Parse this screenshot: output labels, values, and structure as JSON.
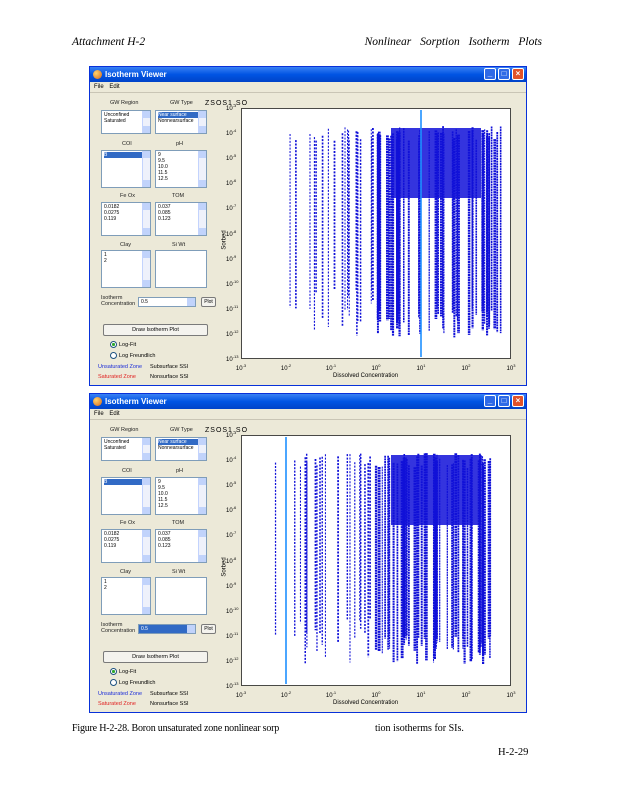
{
  "header": {
    "left": "Attachment    H-2",
    "right": "Nonlinear   Sorption   Isotherm   Plots"
  },
  "windows": [
    {
      "title": "Isotherm Viewer",
      "menu": [
        "File",
        "Edit"
      ],
      "gw_region_label": "GW Region",
      "gw_region_options": [
        "Unconfined",
        "Saturated"
      ],
      "gw_type_label": "GW Type",
      "gw_type_options": [
        "Near surface",
        "Nonnearsurface"
      ],
      "gw_type_selected": 0,
      "col_label": "COI",
      "col_options": [
        "B"
      ],
      "col_selected": 0,
      "ph_label": "pH",
      "ph_options": [
        "9",
        "9.5",
        "10.0",
        "11.5",
        "12.5"
      ],
      "fe_label": "Fe Ox",
      "fe_options": [
        "0.0182",
        "0.0275",
        "0.119"
      ],
      "com_label": "TOM",
      "com_options": [
        "0.037",
        "0.085",
        "0.123"
      ],
      "clay_label": "Clay",
      "clay_options": [
        "1",
        "2"
      ],
      "si_label": "Si Wt",
      "select_label": "Isotherm Concentration",
      "select_value": "0.5",
      "select_active": false,
      "small_button": "Plot",
      "plot_button": "Draw Isotherm Plot",
      "radio_1": "Log-Fit",
      "radio_2": "Log Freundlich",
      "legend": {
        "unsat": "Unsaturated Zone",
        "sat": "Saturated Zone",
        "a": "Subsurface SSI",
        "b": "Nonsurface SSI"
      },
      "plot_title": "ZSOS1.SO",
      "x_label": "Dissolved Concentration",
      "y_label": "Sorbed",
      "vline_x_exp": 1.0
    },
    {
      "title": "Isotherm Viewer",
      "menu": [
        "File",
        "Edit"
      ],
      "gw_region_label": "GW Region",
      "gw_region_options": [
        "Unconfined",
        "Saturated"
      ],
      "gw_type_label": "GW Type",
      "gw_type_options": [
        "Near surface",
        "Nonnearsurface"
      ],
      "gw_type_selected": 0,
      "col_label": "COI",
      "col_options": [
        "B"
      ],
      "col_selected": 0,
      "ph_label": "pH",
      "ph_options": [
        "9",
        "9.5",
        "10.0",
        "11.5",
        "12.5"
      ],
      "fe_label": "Fe Ox",
      "fe_options": [
        "0.0182",
        "0.0275",
        "0.119"
      ],
      "com_label": "TOM",
      "com_options": [
        "0.037",
        "0.085",
        "0.123"
      ],
      "clay_label": "Clay",
      "clay_options": [
        "1",
        "2"
      ],
      "si_label": "Si Wt",
      "select_label": "Isotherm Concentration",
      "select_value": "0.5",
      "select_active": true,
      "small_button": "Plot",
      "plot_button": "Draw Isotherm Plot",
      "radio_1": "Log-Fit",
      "radio_2": "Log Freundlich",
      "legend": {
        "unsat": "Unsaturated Zone",
        "sat": "Saturated Zone",
        "a": "Subsurface SSI",
        "b": "Nonsurface SSI"
      },
      "plot_title": "ZSOS1.SO",
      "x_label": "Dissolved Concentration",
      "y_label": "Sorbed",
      "vline_x_exp": -2.0
    }
  ],
  "axis": {
    "x_tick_exps": [
      "-3",
      "-2",
      "-1",
      "0",
      "1",
      "2",
      "3"
    ],
    "y_tick_exps": [
      "-3",
      "-4",
      "-5",
      "-6",
      "-7",
      "-8",
      "-9",
      "-10",
      "-11",
      "-12",
      "-13"
    ],
    "x_range_exp": [
      -3,
      3
    ],
    "y_range_exp": [
      -13,
      -3
    ],
    "tick_base": "10",
    "series_color": "#1010d8",
    "vline_color": "#1e90ff"
  },
  "chart_data": [
    {
      "type": "scatter",
      "title": "ZSOS1.SO",
      "xlabel": "Dissolved Concentration",
      "ylabel": "Sorbed",
      "x_scale": "log",
      "y_scale": "log",
      "xlim": [
        0.001,
        1000
      ],
      "ylim": [
        1e-13,
        0.001
      ],
      "vertical_line_x": 10
    },
    {
      "type": "scatter",
      "title": "ZSOS1.SO",
      "xlabel": "Dissolved Concentration",
      "ylabel": "Sorbed",
      "x_scale": "log",
      "y_scale": "log",
      "xlim": [
        0.001,
        1000
      ],
      "ylim": [
        1e-13,
        0.001
      ],
      "vertical_line_x": 0.01
    }
  ],
  "caption": {
    "part1": "Figure H-2-28. Boron unsaturated zone nonlinear sorp",
    "part2": "tion isotherms for SIs."
  },
  "page_number": "H-2-29"
}
